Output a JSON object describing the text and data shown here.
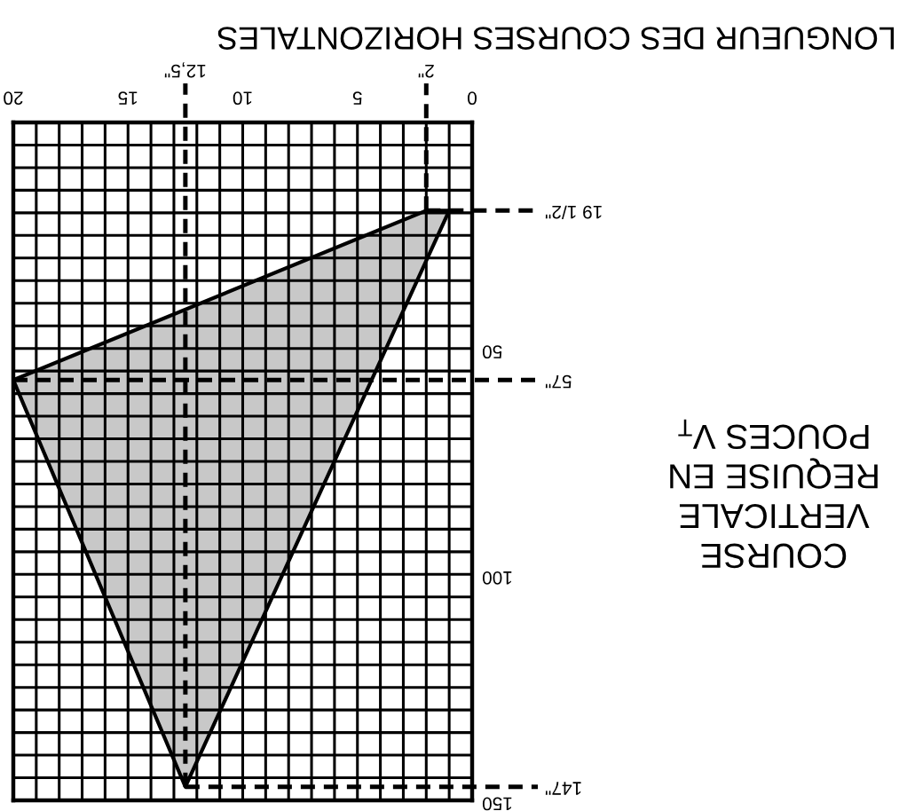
{
  "chart_data": {
    "type": "area",
    "xlabel": "LONGUEUR DES COURSES HORIZONTALES",
    "ylabel": "COURSE\nVERTICALE\nREQUISE EN\nPOUCES V$_{T}$",
    "series": [
      {
        "color": "#c8c8c8",
        "x": [
          2,
          20,
          12.5,
          1
        ],
        "values": [
          19.5,
          57,
          147,
          19.5
        ]
      }
    ],
    "xlim": [
      20,
      0
    ],
    "ylim": [
      150,
      0
    ],
    "xticks": [
      0,
      {
        "value": 1,
        "label": null
      },
      {
        "value": 2,
        "label": null
      },
      {
        "value": 3,
        "label": null
      },
      {
        "value": 4,
        "label": null
      },
      5,
      {
        "value": 6,
        "label": null
      },
      {
        "value": 7,
        "label": null
      },
      {
        "value": 8,
        "label": null
      },
      {
        "value": 9,
        "label": null
      },
      10,
      {
        "value": 11,
        "label": null
      },
      {
        "value": 12,
        "label": null
      },
      {
        "value": 13,
        "label": null
      },
      {
        "value": 14,
        "label": null
      },
      15,
      {
        "value": 16,
        "label": null
      },
      {
        "value": 17,
        "label": null
      },
      {
        "value": 18,
        "label": null
      },
      {
        "value": 19,
        "label": null
      },
      20
    ],
    "yticks": [
      {
        "value": 0,
        "label": null
      },
      {
        "value": 5,
        "label": null
      },
      {
        "value": 10,
        "label": null
      },
      {
        "value": 15,
        "label": null
      },
      {
        "value": 20,
        "label": null
      },
      {
        "value": 25,
        "label": null
      },
      {
        "value": 30,
        "label": null
      },
      {
        "value": 35,
        "label": null
      },
      {
        "value": 40,
        "label": null
      },
      {
        "value": 45,
        "label": null
      },
      50,
      {
        "value": 55,
        "label": null
      },
      {
        "value": 60,
        "label": null
      },
      {
        "value": 65,
        "label": null
      },
      {
        "value": 70,
        "label": null
      },
      {
        "value": 75,
        "label": null
      },
      {
        "value": 80,
        "label": null
      },
      {
        "value": 85,
        "label": null
      },
      {
        "value": 90,
        "label": null
      },
      {
        "value": 95,
        "label": null
      },
      100,
      {
        "value": 105,
        "label": null
      },
      {
        "value": 110,
        "label": null
      },
      {
        "value": 115,
        "label": null
      },
      {
        "value": 120,
        "label": null
      },
      {
        "value": 125,
        "label": null
      },
      {
        "value": 130,
        "label": null
      },
      {
        "value": 135,
        "label": null
      },
      {
        "value": 140,
        "label": null
      },
      {
        "value": 145,
        "label": null
      },
      150
    ],
    "grid": true,
    "ref_lines": [
      {
        "axis": "y",
        "value": 19.5,
        "label": "19 1/2\"",
        "color": "#000000",
        "line_style": "dashed"
      },
      {
        "axis": "y",
        "value": 57,
        "label": "57\"",
        "color": "#000000",
        "line_style": "dashed"
      },
      {
        "axis": "y",
        "value": 147,
        "label": "147\"",
        "color": "#000000",
        "line_style": "dashed"
      },
      {
        "axis": "x",
        "value": 2,
        "label": "2\"",
        "color": "#000000",
        "line_style": "dashed"
      },
      {
        "axis": "x",
        "value": 12.5,
        "label": "12,5\"",
        "color": "#000000",
        "line_style": "dashed"
      }
    ]
  }
}
